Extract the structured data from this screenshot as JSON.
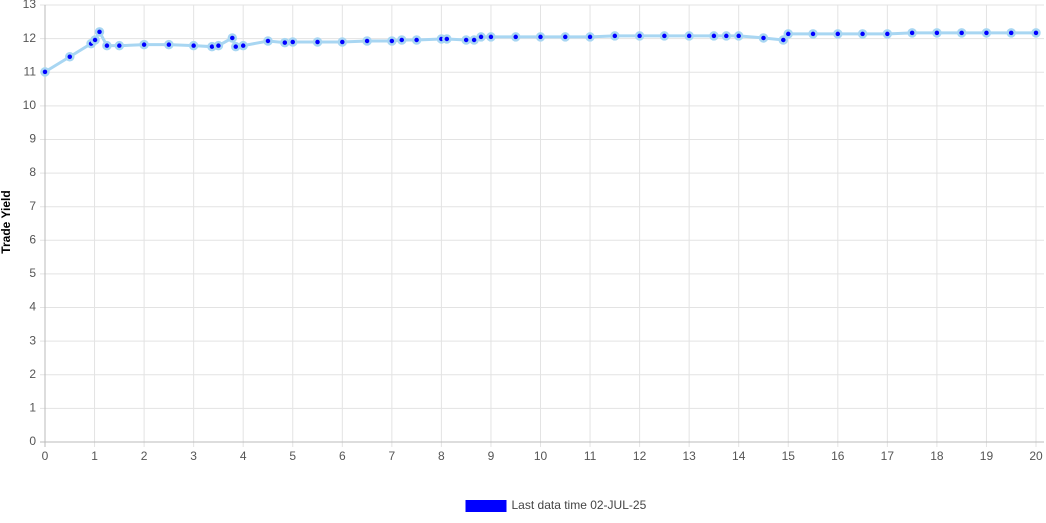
{
  "chart_data": {
    "type": "line",
    "y_label": "Trade Yield",
    "x": [
      0,
      0.5,
      0.93,
      1.01,
      1.1,
      1.25,
      1.5,
      2.0,
      2.5,
      3.0,
      3.37,
      3.5,
      3.78,
      3.85,
      4.0,
      4.5,
      4.84,
      5.0,
      5.5,
      6.0,
      6.5,
      7.0,
      7.2,
      7.5,
      8.0,
      8.11,
      8.5,
      8.66,
      8.8,
      9.0,
      9.5,
      10.0,
      10.5,
      11.0,
      11.5,
      12.0,
      12.5,
      13.0,
      13.5,
      13.75,
      14.0,
      14.5,
      14.9,
      15.0,
      15.5,
      16.0,
      16.5,
      17.0,
      17.5,
      18.0,
      18.5,
      19.0,
      19.5,
      20.0
    ],
    "series": [
      {
        "name": "Last data time 02-JUL-25",
        "color": "#0000ff",
        "line_color": "#a8d6f2",
        "values": [
          11.01,
          11.46,
          11.85,
          11.96,
          12.2,
          11.79,
          11.79,
          11.82,
          11.82,
          11.79,
          11.76,
          11.79,
          12.02,
          11.76,
          11.79,
          11.93,
          11.88,
          11.9,
          11.9,
          11.9,
          11.93,
          11.93,
          11.96,
          11.96,
          11.99,
          11.99,
          11.96,
          11.96,
          12.05,
          12.05,
          12.05,
          12.05,
          12.05,
          12.05,
          12.08,
          12.08,
          12.08,
          12.08,
          12.08,
          12.08,
          12.08,
          12.02,
          11.96,
          12.14,
          12.14,
          12.14,
          12.14,
          12.14,
          12.17,
          12.17,
          12.17,
          12.17,
          12.17,
          12.17
        ]
      }
    ],
    "xlim": [
      0,
      20
    ],
    "xticks": [
      0,
      1,
      2,
      3,
      4,
      5,
      6,
      7,
      8,
      9,
      10,
      11,
      12,
      13,
      14,
      15,
      16,
      17,
      18,
      19,
      20
    ],
    "ylim": [
      0,
      13
    ],
    "yticks": [
      0,
      1,
      2,
      3,
      4,
      5,
      6,
      7,
      8,
      9,
      10,
      11,
      12,
      13
    ],
    "grid": true,
    "legend": "bottom"
  }
}
